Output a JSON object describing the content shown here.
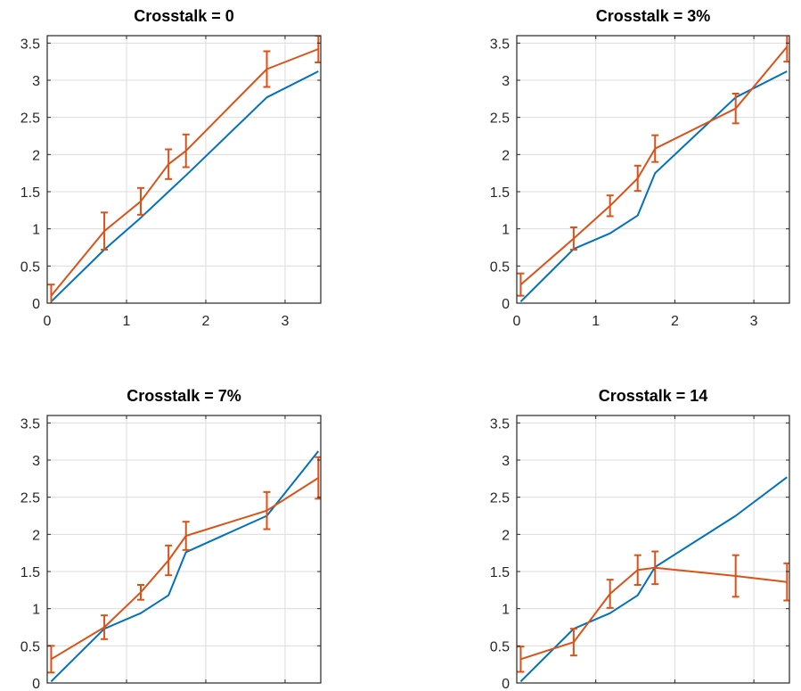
{
  "colors": {
    "reference": "#0072BD",
    "measured": "#D95319",
    "grid": "#dcdcdc",
    "axes": "#262626"
  },
  "chart_data": [
    {
      "type": "line",
      "title": "Crosstalk = 0",
      "xlim": [
        0,
        3.45
      ],
      "ylim": [
        0,
        3.6
      ],
      "xticks": [
        0,
        1,
        2,
        3
      ],
      "xtick_labels": [
        "0",
        "1",
        "2",
        "3"
      ],
      "yticks": [
        0,
        0.5,
        1,
        1.5,
        2,
        2.5,
        3,
        3.5
      ],
      "ytick_labels": [
        "0",
        "0.5",
        "1",
        "1.5",
        "2",
        "2.5",
        "3",
        "3.5"
      ],
      "grid": true,
      "series": [
        {
          "x": [
            0.05,
            0.72,
            1.18,
            1.53,
            1.75,
            2.77,
            3.42
          ],
          "y": [
            0.02,
            0.72,
            1.15,
            1.5,
            1.72,
            2.77,
            3.12
          ]
        },
        {
          "x": [
            0.05,
            0.72,
            1.18,
            1.53,
            1.75,
            2.77,
            3.42
          ],
          "y": [
            0.1,
            0.97,
            1.37,
            1.87,
            2.05,
            3.15,
            3.42
          ],
          "err": [
            0.15,
            0.25,
            0.18,
            0.2,
            0.22,
            0.24,
            0.18
          ]
        }
      ]
    },
    {
      "type": "line",
      "title": "Crosstalk = 3%",
      "xlim": [
        0,
        3.45
      ],
      "ylim": [
        0,
        3.6
      ],
      "xticks": [
        0,
        1,
        2,
        3
      ],
      "xtick_labels": [
        "0",
        "1",
        "2",
        "3"
      ],
      "yticks": [
        0,
        0.5,
        1,
        1.5,
        2,
        2.5,
        3,
        3.5
      ],
      "ytick_labels": [
        "0",
        "0.5",
        "1",
        "1.5",
        "2",
        "2.5",
        "3",
        "3.5"
      ],
      "grid": true,
      "series": [
        {
          "x": [
            0.05,
            0.72,
            1.18,
            1.53,
            1.75,
            2.77,
            3.42
          ],
          "y": [
            0.02,
            0.73,
            0.94,
            1.18,
            1.75,
            2.77,
            3.12
          ]
        },
        {
          "x": [
            0.05,
            0.72,
            1.18,
            1.53,
            1.75,
            2.77,
            3.42
          ],
          "y": [
            0.25,
            0.87,
            1.31,
            1.68,
            2.08,
            2.62,
            3.45
          ],
          "err": [
            0.15,
            0.15,
            0.14,
            0.17,
            0.18,
            0.2,
            0.2
          ]
        }
      ]
    },
    {
      "type": "line",
      "title": "Crosstalk = 7%",
      "xlim": [
        0,
        3.45
      ],
      "ylim": [
        0,
        3.6
      ],
      "xticks": [
        0,
        1,
        2,
        3
      ],
      "xtick_labels": [],
      "yticks": [
        0,
        0.5,
        1,
        1.5,
        2,
        2.5,
        3,
        3.5
      ],
      "ytick_labels": [
        "0",
        "0.5",
        "1",
        "1.5",
        "2",
        "2.5",
        "3",
        "3.5"
      ],
      "grid": true,
      "series": [
        {
          "x": [
            0.05,
            0.72,
            1.18,
            1.53,
            1.75,
            2.77,
            3.42
          ],
          "y": [
            0.02,
            0.73,
            0.94,
            1.18,
            1.76,
            2.25,
            3.12
          ]
        },
        {
          "x": [
            0.05,
            0.72,
            1.18,
            1.53,
            1.75,
            2.77,
            3.42
          ],
          "y": [
            0.32,
            0.75,
            1.22,
            1.65,
            1.98,
            2.32,
            2.76
          ],
          "err": [
            0.18,
            0.16,
            0.1,
            0.2,
            0.19,
            0.25,
            0.28
          ]
        }
      ]
    },
    {
      "type": "line",
      "title": "Crosstalk = 14",
      "xlim": [
        0,
        3.45
      ],
      "ylim": [
        0,
        3.6
      ],
      "xticks": [
        0,
        1,
        2,
        3
      ],
      "xtick_labels": [],
      "yticks": [
        0,
        0.5,
        1,
        1.5,
        2,
        2.5,
        3,
        3.5
      ],
      "ytick_labels": [
        "0",
        "0.5",
        "1",
        "1.5",
        "2",
        "2.5",
        "3",
        "3.5"
      ],
      "grid": true,
      "series": [
        {
          "x": [
            0.05,
            0.72,
            1.18,
            1.53,
            1.75,
            2.77,
            3.42
          ],
          "y": [
            0.02,
            0.73,
            0.94,
            1.18,
            1.56,
            2.25,
            2.77
          ]
        },
        {
          "x": [
            0.05,
            0.72,
            1.18,
            1.53,
            1.75,
            2.77,
            3.42
          ],
          "y": [
            0.32,
            0.55,
            1.2,
            1.52,
            1.55,
            1.44,
            1.36
          ],
          "err": [
            0.17,
            0.18,
            0.19,
            0.2,
            0.22,
            0.28,
            0.25
          ]
        }
      ]
    }
  ]
}
